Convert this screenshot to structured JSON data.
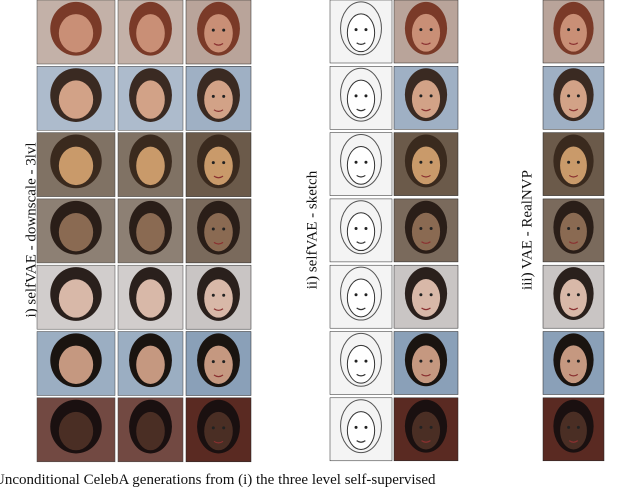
{
  "panels": [
    {
      "label": "i) selfVAE - downscale - 3lvl"
    },
    {
      "label": "ii) selfVAE - sketch"
    },
    {
      "label": "iii) VAE - RealNVP"
    }
  ],
  "caption": "Unconditional CelebA generations from (i) the three level self-supervised"
}
